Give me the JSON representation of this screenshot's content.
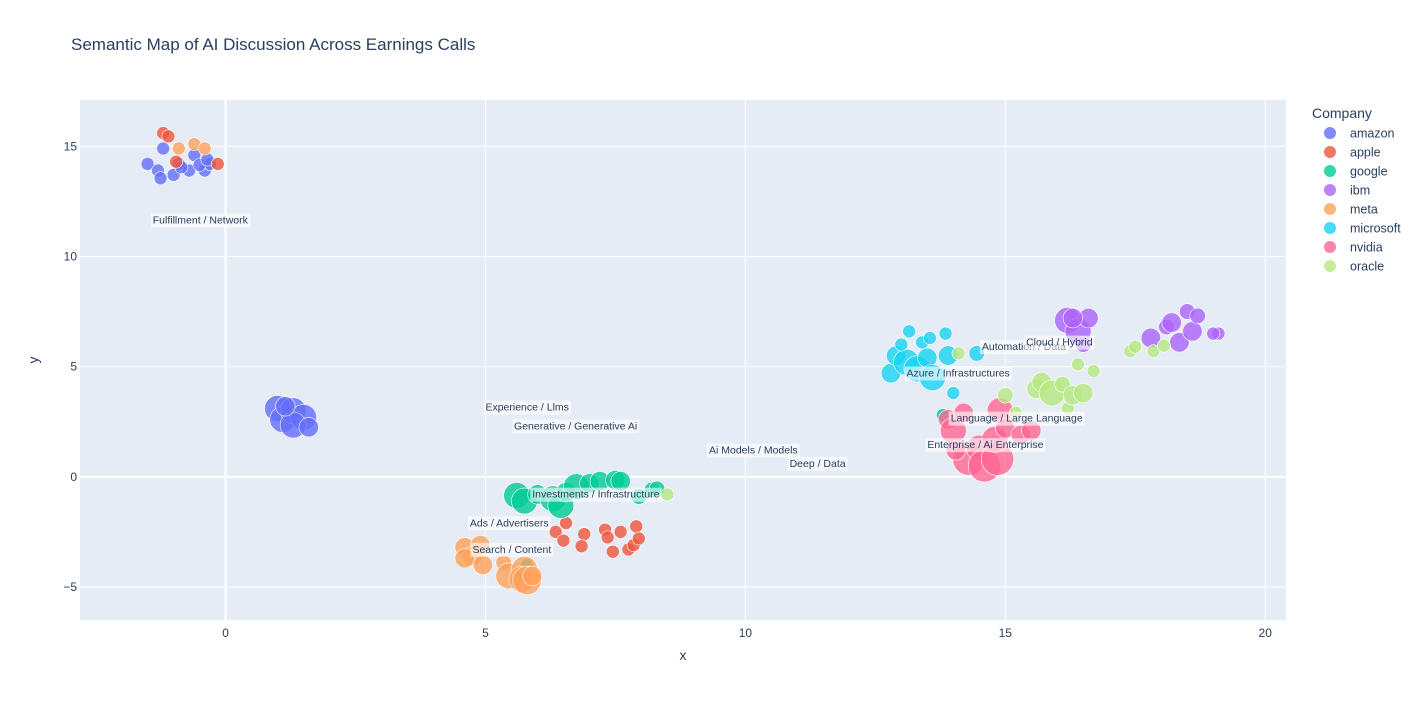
{
  "chart_data": {
    "type": "scatter",
    "title": "Semantic Map of AI Discussion Across Earnings Calls",
    "xlabel": "x",
    "ylabel": "y",
    "xlim": [
      -2.8,
      20.4
    ],
    "ylim": [
      -6.5,
      17.1
    ],
    "x_ticks": [
      0,
      5,
      10,
      15,
      20
    ],
    "y_ticks": [
      -5,
      0,
      5,
      10,
      15
    ],
    "legend_title": "Company",
    "legend_position": "right",
    "series": [
      {
        "name": "amazon",
        "color": "#636efa",
        "points": [
          [
            -1.5,
            14.2,
            1
          ],
          [
            -1.2,
            14.9,
            1
          ],
          [
            -0.9,
            14.2,
            1
          ],
          [
            -0.6,
            14.6,
            1
          ],
          [
            -1.3,
            13.9,
            1
          ],
          [
            -1.0,
            13.7,
            1
          ],
          [
            -0.7,
            13.9,
            1
          ],
          [
            -0.4,
            13.9,
            1
          ],
          [
            -0.3,
            14.2,
            1
          ],
          [
            -1.25,
            13.55,
            1
          ],
          [
            -0.5,
            14.15,
            1
          ],
          [
            -0.85,
            14.05,
            1
          ],
          [
            -0.35,
            14.4,
            1
          ],
          [
            1.0,
            3.1,
            2
          ],
          [
            1.1,
            2.6,
            2
          ],
          [
            1.3,
            3.0,
            2
          ],
          [
            1.5,
            2.7,
            2
          ],
          [
            1.3,
            2.35,
            2
          ],
          [
            1.6,
            2.25,
            1.5
          ],
          [
            1.15,
            3.2,
            1.5
          ]
        ]
      },
      {
        "name": "apple",
        "color": "#ef553b",
        "points": [
          [
            -1.2,
            15.6,
            1
          ],
          [
            -1.1,
            15.45,
            1
          ],
          [
            -0.95,
            14.3,
            1
          ],
          [
            -0.15,
            14.2,
            1
          ],
          [
            6.35,
            -2.5,
            1
          ],
          [
            6.5,
            -2.9,
            1
          ],
          [
            6.55,
            -2.1,
            1
          ],
          [
            6.9,
            -2.6,
            1
          ],
          [
            6.85,
            -3.15,
            1
          ],
          [
            7.3,
            -2.4,
            1
          ],
          [
            7.35,
            -2.75,
            1
          ],
          [
            7.45,
            -3.4,
            1
          ],
          [
            7.6,
            -2.5,
            1
          ],
          [
            7.75,
            -3.3,
            1
          ],
          [
            7.85,
            -3.1,
            1
          ],
          [
            7.9,
            -2.25,
            1
          ],
          [
            7.95,
            -2.8,
            1
          ]
        ]
      },
      {
        "name": "google",
        "color": "#00cc96",
        "points": [
          [
            5.6,
            -0.85,
            2
          ],
          [
            5.75,
            -1.1,
            2
          ],
          [
            6.0,
            -0.8,
            1.5
          ],
          [
            6.3,
            -1.0,
            2
          ],
          [
            6.45,
            -1.3,
            2
          ],
          [
            6.55,
            -0.7,
            1.5
          ],
          [
            6.75,
            -0.45,
            2
          ],
          [
            7.0,
            -0.3,
            1.5
          ],
          [
            7.2,
            -0.2,
            1.5
          ],
          [
            7.5,
            -0.15,
            1.5
          ],
          [
            7.6,
            -0.2,
            1.5
          ],
          [
            8.2,
            -0.6,
            1.2
          ],
          [
            8.3,
            -0.55,
            1.2
          ],
          [
            7.95,
            -0.9,
            1.2
          ],
          [
            5.8,
            -4.0,
            1
          ],
          [
            13.8,
            2.8,
            1
          ]
        ]
      },
      {
        "name": "ibm",
        "color": "#ab63fa",
        "points": [
          [
            16.2,
            7.1,
            2
          ],
          [
            16.4,
            6.6,
            2
          ],
          [
            16.6,
            7.2,
            1.5
          ],
          [
            16.5,
            6.0,
            1.2
          ],
          [
            16.3,
            7.2,
            1.5
          ],
          [
            17.8,
            6.3,
            1.5
          ],
          [
            18.1,
            6.8,
            1.2
          ],
          [
            18.2,
            7.0,
            1.5
          ],
          [
            18.35,
            6.1,
            1.5
          ],
          [
            18.5,
            7.5,
            1.2
          ],
          [
            18.6,
            6.6,
            1.5
          ],
          [
            18.7,
            7.3,
            1.2
          ],
          [
            19.1,
            6.5,
            1
          ],
          [
            19.0,
            6.5,
            1
          ]
        ]
      },
      {
        "name": "meta",
        "color": "#ffa15a",
        "points": [
          [
            -0.9,
            14.9,
            1
          ],
          [
            -0.6,
            15.1,
            1
          ],
          [
            -0.4,
            14.9,
            1
          ],
          [
            4.6,
            -3.2,
            1.5
          ],
          [
            4.75,
            -3.6,
            1.5
          ],
          [
            4.9,
            -3.1,
            1.5
          ],
          [
            4.95,
            -4.0,
            1.5
          ],
          [
            4.6,
            -3.7,
            1.5
          ],
          [
            5.35,
            -3.9,
            1.2
          ],
          [
            5.45,
            -4.5,
            2
          ],
          [
            5.75,
            -4.2,
            2
          ],
          [
            5.7,
            -4.65,
            2
          ],
          [
            5.8,
            -4.7,
            2.2
          ],
          [
            5.9,
            -4.5,
            1.5
          ]
        ]
      },
      {
        "name": "microsoft",
        "color": "#19d3f3",
        "points": [
          [
            12.8,
            4.7,
            1.5
          ],
          [
            12.9,
            5.5,
            1.5
          ],
          [
            13.1,
            5.2,
            2
          ],
          [
            13.3,
            4.9,
            2
          ],
          [
            13.5,
            5.4,
            1.5
          ],
          [
            13.6,
            4.5,
            2
          ],
          [
            13.0,
            6.0,
            1
          ],
          [
            13.15,
            6.6,
            1
          ],
          [
            13.4,
            6.1,
            1
          ],
          [
            13.55,
            6.3,
            1
          ],
          [
            13.85,
            6.5,
            1
          ],
          [
            13.9,
            5.5,
            1.5
          ],
          [
            14.0,
            3.8,
            1
          ],
          [
            14.45,
            5.6,
            1.2
          ]
        ]
      },
      {
        "name": "nvidia",
        "color": "#ff6692",
        "points": [
          [
            13.9,
            2.6,
            1.5
          ],
          [
            14.0,
            2.1,
            2
          ],
          [
            14.2,
            2.9,
            1.5
          ],
          [
            14.3,
            0.8,
            2.5
          ],
          [
            14.5,
            1.3,
            2
          ],
          [
            14.6,
            0.5,
            2.5
          ],
          [
            14.85,
            0.8,
            2.5
          ],
          [
            14.8,
            1.7,
            2
          ],
          [
            14.9,
            3.0,
            2
          ],
          [
            15.0,
            2.2,
            1.5
          ],
          [
            15.3,
            1.9,
            1.5
          ],
          [
            15.5,
            2.1,
            1.5
          ],
          [
            14.05,
            1.2,
            1.5
          ]
        ]
      },
      {
        "name": "oracle",
        "color": "#b6e880",
        "points": [
          [
            14.1,
            5.6,
            1
          ],
          [
            15.0,
            3.7,
            1.2
          ],
          [
            15.2,
            2.9,
            1
          ],
          [
            15.6,
            4.0,
            1.5
          ],
          [
            15.7,
            4.3,
            1.5
          ],
          [
            15.9,
            3.8,
            2
          ],
          [
            16.1,
            4.2,
            1.2
          ],
          [
            16.2,
            3.1,
            1
          ],
          [
            16.3,
            3.7,
            1.5
          ],
          [
            16.4,
            5.1,
            1
          ],
          [
            16.5,
            3.8,
            1.5
          ],
          [
            16.7,
            4.8,
            1
          ],
          [
            17.4,
            5.7,
            1
          ],
          [
            17.5,
            5.9,
            1
          ],
          [
            17.85,
            5.7,
            1
          ],
          [
            18.05,
            5.95,
            1
          ],
          [
            8.5,
            -0.8,
            1
          ]
        ]
      }
    ],
    "annotations": [
      {
        "text": "Fulfillment / Network",
        "x": -1.4,
        "y": 11.5
      },
      {
        "text": "Experience / Llms",
        "x": 5.0,
        "y": 3.0
      },
      {
        "text": "Generative / Generative Ai",
        "x": 5.55,
        "y": 2.15
      },
      {
        "text": "Ai Models / Models",
        "x": 9.3,
        "y": 1.05
      },
      {
        "text": "Deep / Data",
        "x": 10.85,
        "y": 0.45
      },
      {
        "text": "Investments / Infrastructure",
        "x": 5.9,
        "y": -0.95
      },
      {
        "text": "Ads / Advertisers",
        "x": 4.7,
        "y": -2.25
      },
      {
        "text": "Search / Content",
        "x": 4.75,
        "y": -3.45
      },
      {
        "text": "Automation / Data",
        "x": 14.55,
        "y": 5.75
      },
      {
        "text": "Cloud / Hybrid",
        "x": 15.4,
        "y": 5.95
      },
      {
        "text": "Azure / Infrastructures",
        "x": 13.1,
        "y": 4.55
      },
      {
        "text": "Language / Large Language",
        "x": 13.95,
        "y": 2.5
      },
      {
        "text": "Enterprise / Ai Enterprise",
        "x": 13.5,
        "y": 1.3
      }
    ]
  }
}
